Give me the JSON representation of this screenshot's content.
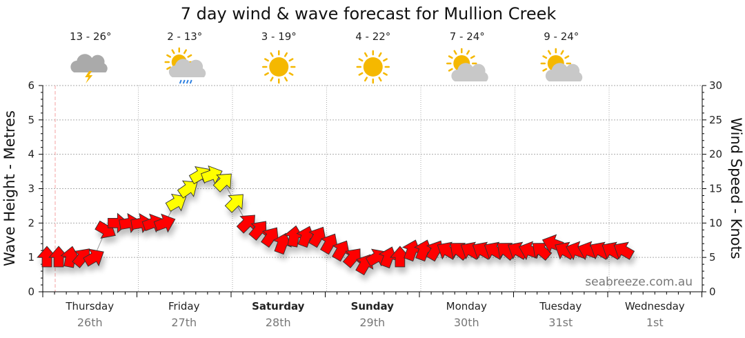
{
  "chart_data": {
    "type": "scatter",
    "title": "7 day wind & wave forecast for Mullion Creek",
    "ylabel_left": "Wave Height - Metres",
    "ylabel_right": "Wind Speed - Knots",
    "ylim_left": [
      0,
      6
    ],
    "ylim_right": [
      0,
      30
    ],
    "left_ticks": [
      "0",
      "1",
      "2",
      "3",
      "4",
      "5",
      "6"
    ],
    "right_ticks": [
      "0",
      "5",
      "10",
      "15",
      "20",
      "25",
      "30"
    ],
    "grid": true,
    "days": [
      {
        "name": "Thursday",
        "date": "26th",
        "bold": false
      },
      {
        "name": "Friday",
        "date": "27th",
        "bold": false
      },
      {
        "name": "Saturday",
        "date": "28th",
        "bold": true
      },
      {
        "name": "Sunday",
        "date": "29th",
        "bold": true
      },
      {
        "name": "Monday",
        "date": "30th",
        "bold": false
      },
      {
        "name": "Tuesday",
        "date": "31st",
        "bold": false
      },
      {
        "name": "Wednesday",
        "date": "1st",
        "bold": false
      }
    ],
    "forecast": [
      {
        "temp": "13 - 26°",
        "icon": "storm-cloud-icon"
      },
      {
        "temp": "2 - 13°",
        "icon": "sun-cloud-rain-icon"
      },
      {
        "temp": "3 - 19°",
        "icon": "sun-icon"
      },
      {
        "temp": "4 - 22°",
        "icon": "sun-icon"
      },
      {
        "temp": "7 - 24°",
        "icon": "sun-cloud-icon"
      },
      {
        "temp": "9 - 24°",
        "icon": "sun-cloud-icon"
      }
    ],
    "wind_series": {
      "name": "Wind (knots, 3-hourly, arrow direction in degrees)",
      "speed": [
        5,
        5,
        5,
        5,
        5,
        9,
        10,
        10,
        10,
        10,
        10,
        13,
        15,
        17,
        17,
        16,
        13,
        10,
        9,
        8,
        7,
        8,
        8,
        8,
        7,
        6,
        5,
        4,
        5,
        5,
        5,
        6,
        6,
        6,
        6,
        6,
        6,
        6,
        6,
        6,
        6,
        6,
        6,
        7,
        6,
        6,
        6,
        6,
        6,
        6
      ],
      "direction": [
        0,
        0,
        10,
        40,
        60,
        120,
        90,
        80,
        80,
        70,
        70,
        60,
        55,
        60,
        70,
        45,
        45,
        45,
        40,
        35,
        20,
        10,
        20,
        30,
        30,
        30,
        40,
        30,
        60,
        20,
        0,
        20,
        20,
        30,
        300,
        310,
        300,
        300,
        300,
        310,
        300,
        290,
        310,
        290,
        300,
        290,
        290,
        300,
        300,
        300
      ]
    },
    "colors": {
      "strong": "#ffff00",
      "normal": "#ff0000",
      "grid": "#aaaaaa",
      "now_line": "#f4a0a0"
    },
    "watermark": "seabreeze.com.au"
  }
}
